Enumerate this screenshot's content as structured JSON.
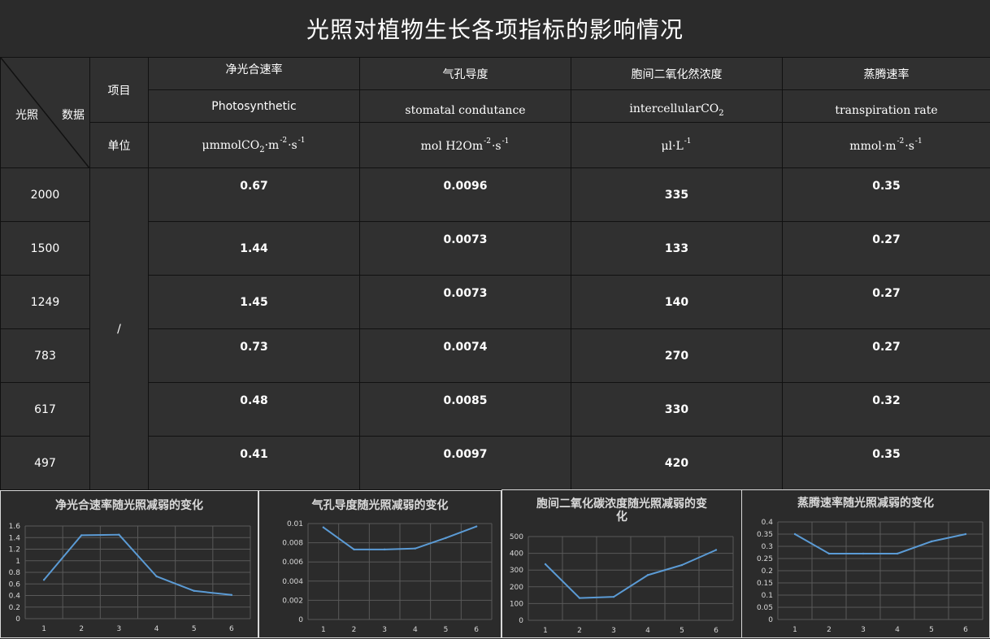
{
  "title": "光照对植物生长各项指标的影响情况",
  "table": {
    "corner_light": "光照",
    "corner_data": "数据",
    "item_label": "项目",
    "unit_label": "单位",
    "slash": "/",
    "columns": [
      {
        "cn": "净光合速率",
        "en": "Photosynthetic",
        "unit_a": "μmmolCO",
        "unit_sub": "2",
        "unit_b": "·m",
        "unit_sup1": "-2",
        "unit_c": "·s",
        "unit_sup2": "-1"
      },
      {
        "cn": "气孔导度",
        "en": "stomatal  condutance",
        "unit_a": "mol H2Om",
        "unit_sub": "",
        "unit_b": "",
        "unit_sup1": "-2",
        "unit_c": "·s",
        "unit_sup2": "-1"
      },
      {
        "cn": "胞间二氧化然浓度",
        "en": "intercellularCO",
        "en_sub": "2",
        "unit_a": "μl·L",
        "unit_sub": "",
        "unit_b": "",
        "unit_sup1": "-1",
        "unit_c": "",
        "unit_sup2": ""
      },
      {
        "cn": "蒸腾速率",
        "en": "transpiration rate",
        "unit_a": "mmol·m",
        "unit_sub": "",
        "unit_b": "",
        "unit_sup1": "-2",
        "unit_c": "·s",
        "unit_sup2": "-1"
      }
    ],
    "rows": [
      {
        "light": "2000",
        "values": [
          "0.67",
          "0.0096",
          "335",
          "0.35"
        ]
      },
      {
        "light": "1500",
        "values": [
          "1.44",
          "0.0073",
          "133",
          "0.27"
        ]
      },
      {
        "light": "1249",
        "values": [
          "1.45",
          "0.0073",
          "140",
          "0.27"
        ]
      },
      {
        "light": "783",
        "values": [
          "0.73",
          "0.0074",
          "270",
          "0.27"
        ]
      },
      {
        "light": "617",
        "values": [
          "0.48",
          "0.0085",
          "330",
          "0.32"
        ]
      },
      {
        "light": "497",
        "values": [
          "0.41",
          "0.0097",
          "420",
          "0.35"
        ]
      }
    ],
    "colors": {
      "red": "#ff1a1a",
      "green": "#92d050",
      "yellow": "#ffff00"
    }
  },
  "chart_data": [
    {
      "type": "line",
      "title": "净光合速率随光照减弱的变化",
      "x": [
        1,
        2,
        3,
        4,
        5,
        6
      ],
      "values": [
        0.67,
        1.44,
        1.45,
        0.73,
        0.48,
        0.41
      ],
      "ylim": [
        0,
        1.6
      ],
      "yticks": [
        "0",
        "0.2",
        "0.4",
        "0.6",
        "0.8",
        "1",
        "1.2",
        "1.4",
        "1.6"
      ],
      "grid": true,
      "line_color": "#5b9bd5"
    },
    {
      "type": "line",
      "title": "气孔导度随光照减弱的变化",
      "x": [
        1,
        2,
        3,
        4,
        5,
        6
      ],
      "values": [
        0.0096,
        0.0073,
        0.0073,
        0.0074,
        0.0085,
        0.0097
      ],
      "ylim": [
        0,
        0.01
      ],
      "yticks": [
        "0",
        "0.002",
        "0.004",
        "0.006",
        "0.008",
        "0.01"
      ],
      "grid": true,
      "line_color": "#5b9bd5"
    },
    {
      "type": "line",
      "title": "胞间二氧化碳浓度随光照减弱的变化",
      "x": [
        1,
        2,
        3,
        4,
        5,
        6
      ],
      "values": [
        335,
        133,
        140,
        270,
        330,
        420
      ],
      "ylim": [
        0,
        500
      ],
      "yticks": [
        "0",
        "100",
        "200",
        "300",
        "400",
        "500"
      ],
      "grid": true,
      "line_color": "#5b9bd5"
    },
    {
      "type": "line",
      "title": "蒸腾速率随光照减弱的变化",
      "x": [
        1,
        2,
        3,
        4,
        5,
        6
      ],
      "values": [
        0.35,
        0.27,
        0.27,
        0.27,
        0.32,
        0.35
      ],
      "ylim": [
        0,
        0.4
      ],
      "yticks": [
        "0",
        "0.05",
        "0.1",
        "0.15",
        "0.2",
        "0.25",
        "0.3",
        "0.35",
        "0.4"
      ],
      "grid": true,
      "line_color": "#5b9bd5"
    }
  ]
}
